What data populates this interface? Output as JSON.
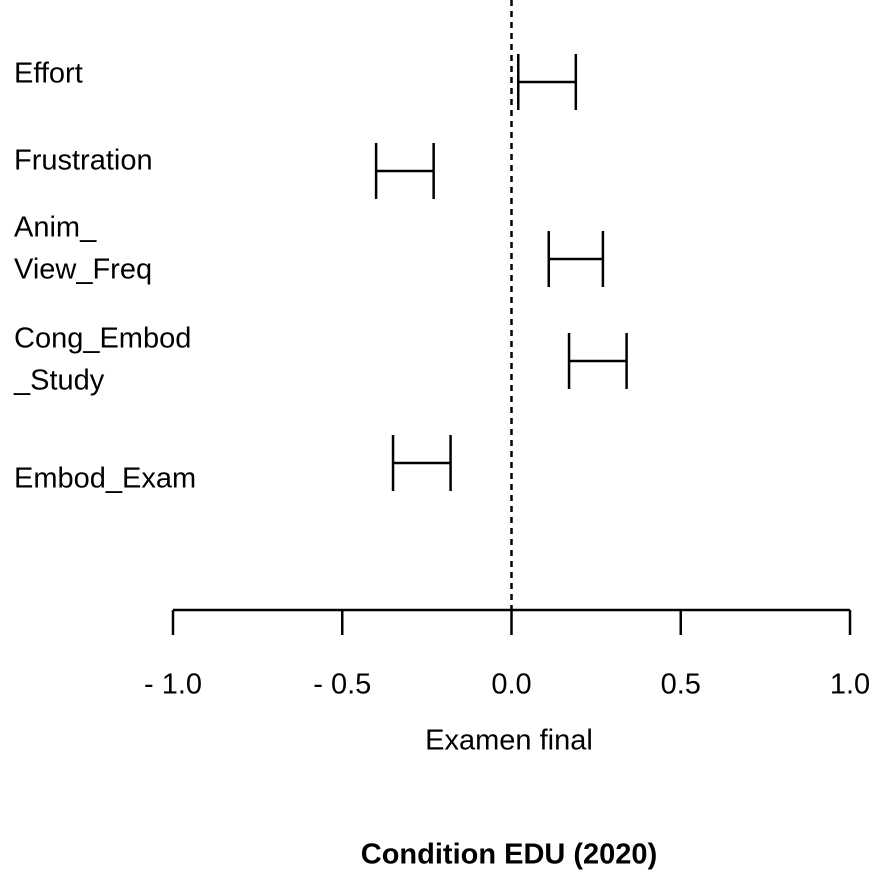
{
  "chart_data": {
    "type": "interval",
    "title": "Condition EDU (2020)",
    "xlabel": "Examen final",
    "categories": [
      [
        "Effort"
      ],
      [
        "Frustration"
      ],
      [
        "Anim_",
        "View_Freq"
      ],
      [
        "Cong_Embod",
        "_Study"
      ],
      [
        "Embod_Exam"
      ]
    ],
    "lower": [
      0.02,
      -0.4,
      0.11,
      0.17,
      -0.35
    ],
    "upper": [
      0.19,
      -0.23,
      0.27,
      0.34,
      -0.18
    ],
    "color": "#000000",
    "reference_line": 0,
    "xlim": [
      -1.0,
      1.0
    ],
    "xticks": [
      {
        "value": -1.0,
        "label": "- 1.0"
      },
      {
        "value": -0.5,
        "label": "- 0.5"
      },
      {
        "value": 0,
        "label": "0.0"
      },
      0.5,
      {
        "value": 1.0,
        "label": "1.0"
      }
    ]
  }
}
